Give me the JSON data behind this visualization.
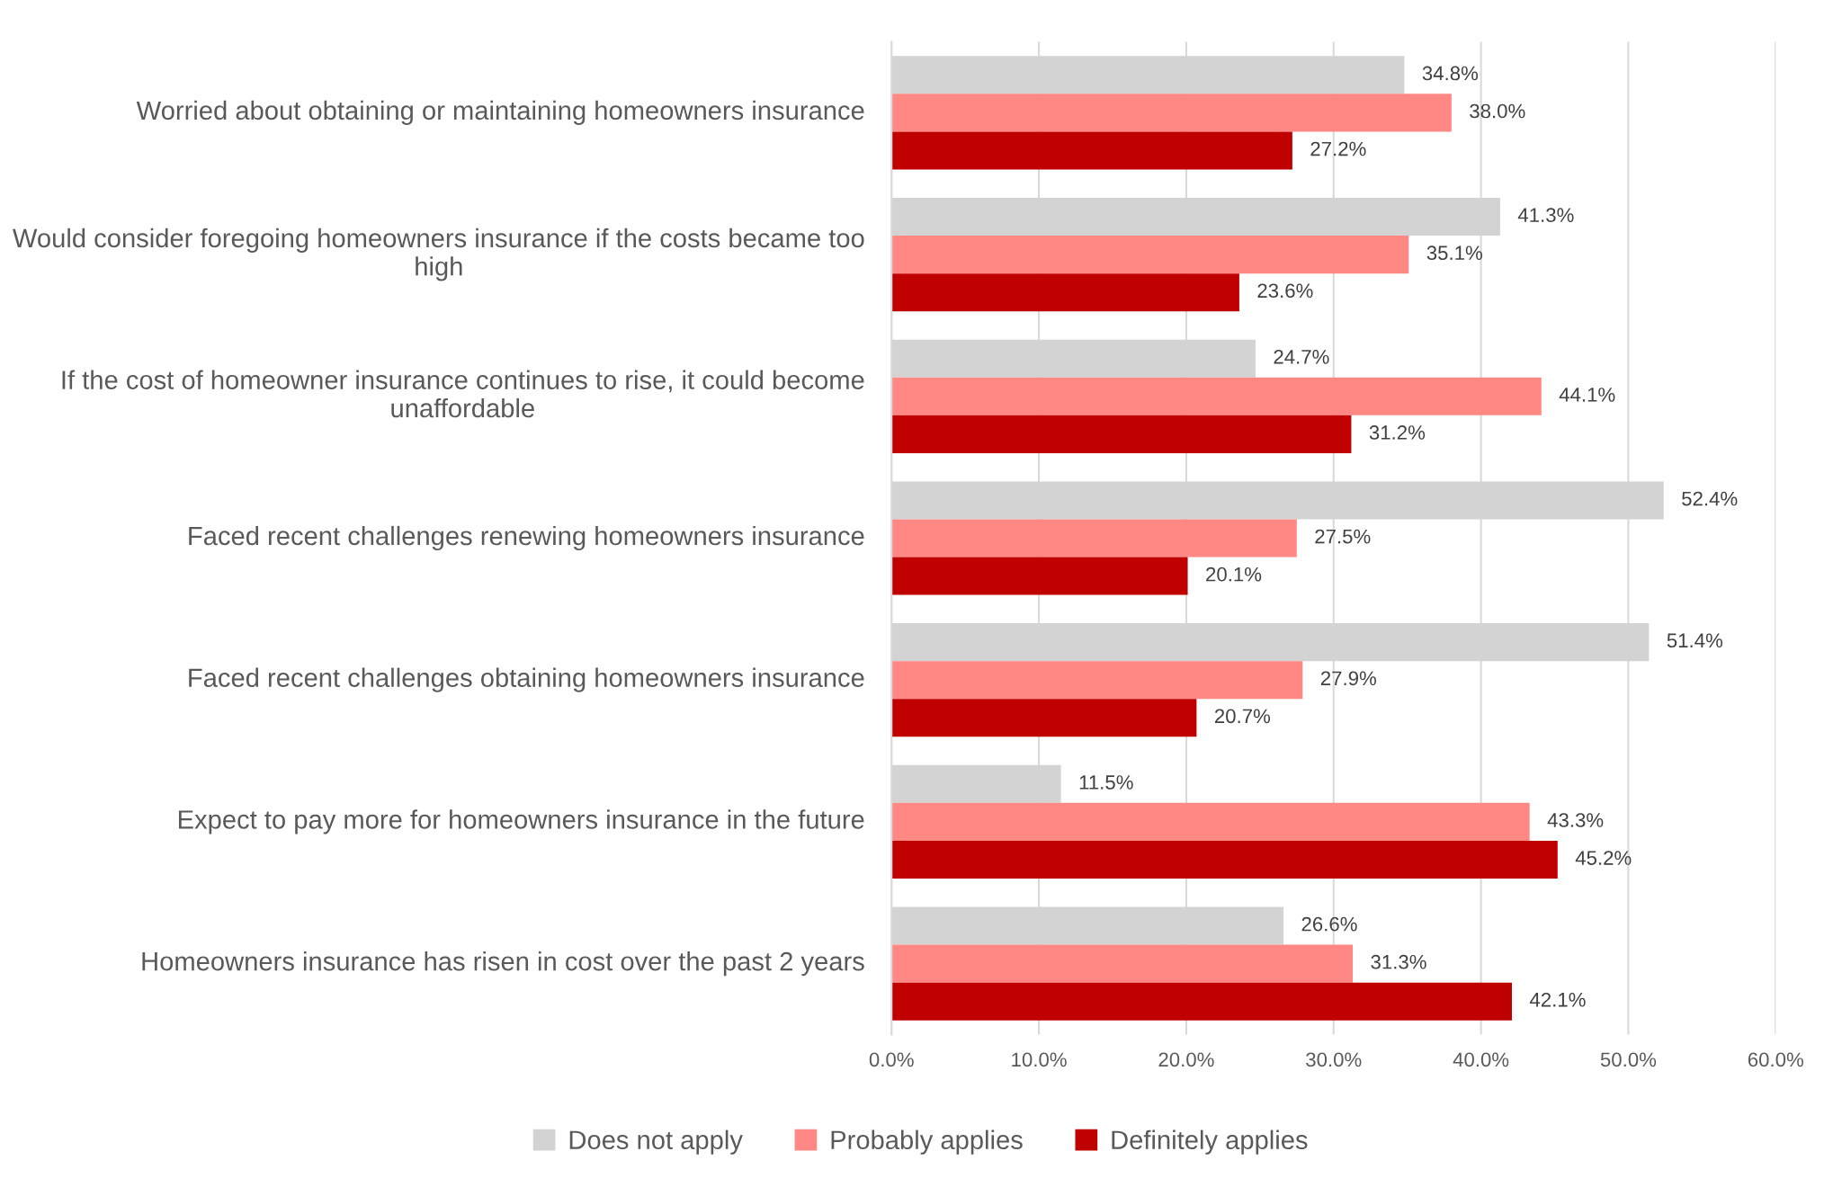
{
  "chart_data": {
    "type": "bar",
    "orientation": "horizontal",
    "categories": [
      "Worried about obtaining or maintaining homeowners insurance",
      "Would consider foregoing homeowners insurance if the costs became too high",
      "If the cost of homeowner insurance continues to rise, it could become unaffordable",
      "Faced recent challenges renewing homeowners insurance",
      "Faced recent challenges obtaining homeowners insurance",
      "Expect to pay more for homeowners insurance in the future",
      "Homeowners insurance has risen in cost over the past 2 years"
    ],
    "series": [
      {
        "name": "Does not apply",
        "color": "#d3d3d3",
        "values": [
          34.8,
          41.3,
          24.7,
          52.4,
          51.4,
          11.5,
          26.6
        ],
        "value_labels": [
          "34.8%",
          "41.3%",
          "24.7%",
          "52.4%",
          "51.4%",
          "11.5%",
          "26.6%"
        ]
      },
      {
        "name": "Probably applies",
        "color": "#ff8784",
        "values": [
          38.0,
          35.1,
          44.1,
          27.5,
          27.9,
          43.3,
          31.3
        ],
        "value_labels": [
          "38.0%",
          "35.1%",
          "44.1%",
          "27.5%",
          "27.9%",
          "43.3%",
          "31.3%"
        ]
      },
      {
        "name": "Definitely applies",
        "color": "#c00000",
        "values": [
          27.2,
          23.6,
          31.2,
          20.1,
          20.7,
          45.2,
          42.1
        ],
        "value_labels": [
          "27.2%",
          "23.6%",
          "31.2%",
          "20.1%",
          "20.7%",
          "45.2%",
          "42.1%"
        ]
      }
    ],
    "xlim": [
      0,
      60
    ],
    "xticks": [
      {
        "value": 0,
        "label": "0.0%"
      },
      {
        "value": 10,
        "label": "10.0%"
      },
      {
        "value": 20,
        "label": "20.0%"
      },
      {
        "value": 30,
        "label": "30.0%"
      },
      {
        "value": 40,
        "label": "40.0%"
      },
      {
        "value": 50,
        "label": "50.0%"
      },
      {
        "value": 60,
        "label": "60.0%"
      }
    ],
    "grid": "x",
    "legend": "bottom"
  }
}
